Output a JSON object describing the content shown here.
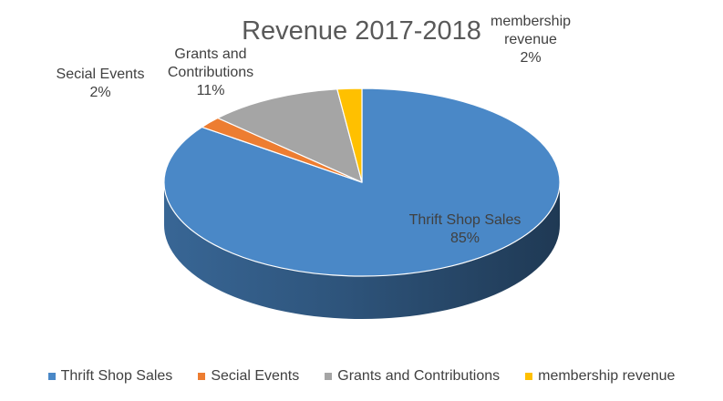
{
  "chart_data": {
    "type": "pie",
    "title": "Revenue 2017-2018",
    "categories": [
      "Thrift Shop Sales",
      "Secial Events",
      "Grants and Contributions",
      "membership revenue"
    ],
    "values": [
      85,
      2,
      11,
      2
    ],
    "value_labels": [
      "85%",
      "2%",
      "11%",
      "2%"
    ],
    "colors": [
      "#4a88c7",
      "#ed7d31",
      "#a5a5a5",
      "#ffc000"
    ],
    "style": "3d",
    "legend": "bottom"
  }
}
